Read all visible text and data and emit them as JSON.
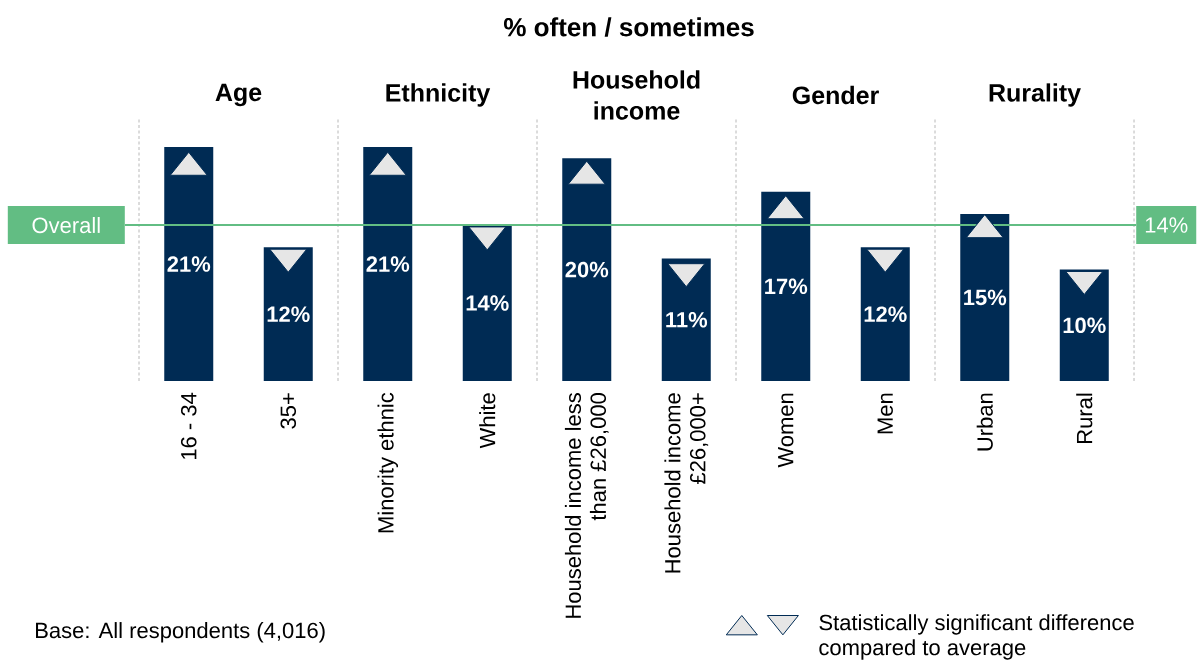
{
  "chart_data": {
    "type": "bar",
    "title": "% often / sometimes",
    "categories": [
      "16 - 34",
      "35+",
      "Minority ethnic",
      "White",
      "Household income less than £26,000",
      "Household income £26,000+",
      "Women",
      "Men",
      "Urban",
      "Rural"
    ],
    "series": [
      {
        "color": "#002b54",
        "values": [
          21,
          12,
          21,
          14,
          20,
          11,
          17,
          12,
          15,
          10
        ],
        "value_labels": [
          "21%",
          "12%",
          "21%",
          "14%",
          "20%",
          "11%",
          "17%",
          "12%",
          "15%",
          "10%"
        ]
      },
      {
        "type": "scatter",
        "name": "Statistically significant difference compared to average",
        "marker": "triangle",
        "color": "#e6e6e6",
        "values": [
          19.5,
          null,
          19.5,
          null,
          18.7,
          null,
          15.6,
          null,
          13.9,
          null
        ]
      },
      {
        "type": "scatter",
        "marker": "triangle-down",
        "color": "#e6e6e6",
        "values": [
          null,
          10.8,
          null,
          12.8,
          null,
          9.5,
          null,
          10.8,
          null,
          8.8
        ]
      }
    ],
    "ref_lines": [
      {
        "axis": "y",
        "value": 14,
        "label": "Overall",
        "color": "#62bd83"
      }
    ],
    "annotations": [
      "Age",
      "Ethnicity",
      "Household income",
      "Gender",
      "Rurality",
      "14%",
      "Base: All respondents (4,016)"
    ],
    "legend": "bottom right"
  }
}
